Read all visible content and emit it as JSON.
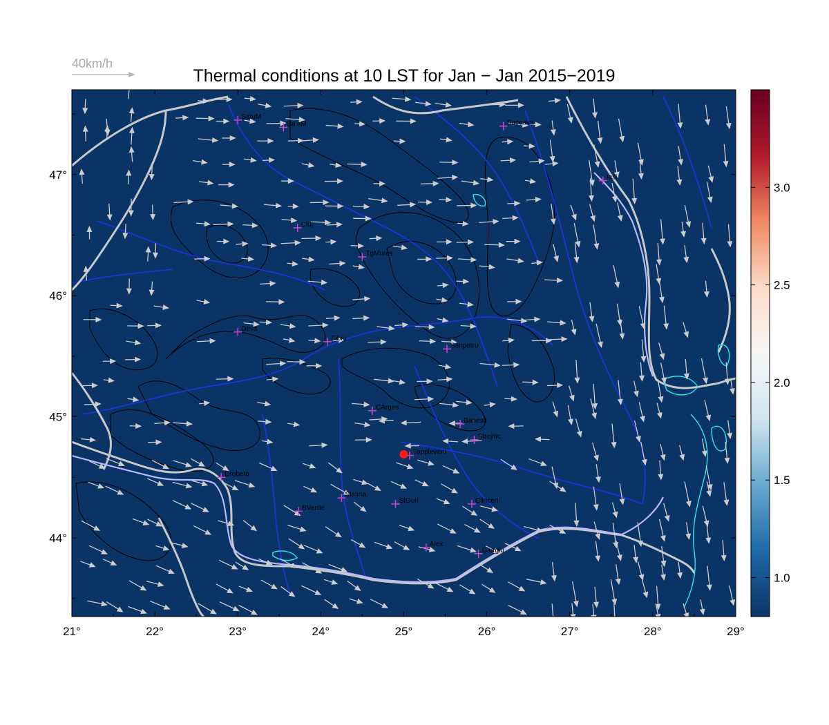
{
  "title": "Thermal conditions at 10 LST for Jan − Jan  2015−2019",
  "wind_legend": {
    "label": "40km/h"
  },
  "map": {
    "lon_range": [
      21,
      29
    ],
    "lat_range": [
      43.35,
      47.7
    ],
    "background_color": "#0b3466",
    "border_color": "#c8c8c8",
    "river_color": "#1a33e8",
    "contour_color": "#000000",
    "lake_color": "#2ee6e6",
    "arrow_color": "#cccccc",
    "city_marker_color": "#cc44cc",
    "highlight_color": "#ff1a1a",
    "x_ticks": [
      "21°",
      "22°",
      "23°",
      "24°",
      "25°",
      "26°",
      "27°",
      "28°",
      "29°"
    ],
    "y_ticks": [
      "44°",
      "45°",
      "46°",
      "47°"
    ],
    "cities": [
      {
        "name": "SatuM",
        "lon": 23.0,
        "lat": 47.45
      },
      {
        "name": "BaiaM",
        "lon": 23.55,
        "lat": 47.39
      },
      {
        "name": "Suceava",
        "lon": 26.2,
        "lat": 47.4
      },
      {
        "name": "Iasi",
        "lon": 27.4,
        "lat": 46.95
      },
      {
        "name": "Cluj",
        "lon": 23.72,
        "lat": 46.56
      },
      {
        "name": "TgMures",
        "lon": 24.5,
        "lat": 46.32
      },
      {
        "name": "Deva",
        "lon": 23.0,
        "lat": 45.7
      },
      {
        "name": "Sibiu",
        "lon": 24.08,
        "lat": 45.62
      },
      {
        "name": "Sanpetru",
        "lon": 25.52,
        "lat": 45.56
      },
      {
        "name": "CArges",
        "lon": 24.62,
        "lat": 45.05
      },
      {
        "name": "Banesti",
        "lon": 25.68,
        "lat": 44.94
      },
      {
        "name": "Strejnic",
        "lon": 25.85,
        "lat": 44.81
      },
      {
        "name": "Toppleveni",
        "lon": 25.07,
        "lat": 44.68
      },
      {
        "name": "Drobeta",
        "lon": 22.8,
        "lat": 44.5
      },
      {
        "name": "Slatina",
        "lon": 24.25,
        "lat": 44.33
      },
      {
        "name": "StGuri",
        "lon": 24.9,
        "lat": 44.28
      },
      {
        "name": "Clinceni",
        "lon": 25.82,
        "lat": 44.28
      },
      {
        "name": "BVerde",
        "lon": 23.73,
        "lat": 44.22
      },
      {
        "name": "Alex",
        "lon": 25.27,
        "lat": 43.92
      },
      {
        "name": "Giurgiu",
        "lon": 25.9,
        "lat": 43.87
      }
    ],
    "highlight_station": {
      "lon": 25.0,
      "lat": 44.69
    }
  },
  "colorbar": {
    "ticks": [
      "1.0",
      "1.5",
      "2.0",
      "2.5",
      "3.0"
    ],
    "tick_values": [
      1.0,
      1.5,
      2.0,
      2.5,
      3.0
    ],
    "range": [
      0.8,
      3.5
    ],
    "colors": [
      "#0b3466",
      "#1f6aa8",
      "#67a9cf",
      "#d1e5f0",
      "#f7f7f7",
      "#fddbc7",
      "#ef8a62",
      "#b2182b",
      "#67001f"
    ]
  }
}
